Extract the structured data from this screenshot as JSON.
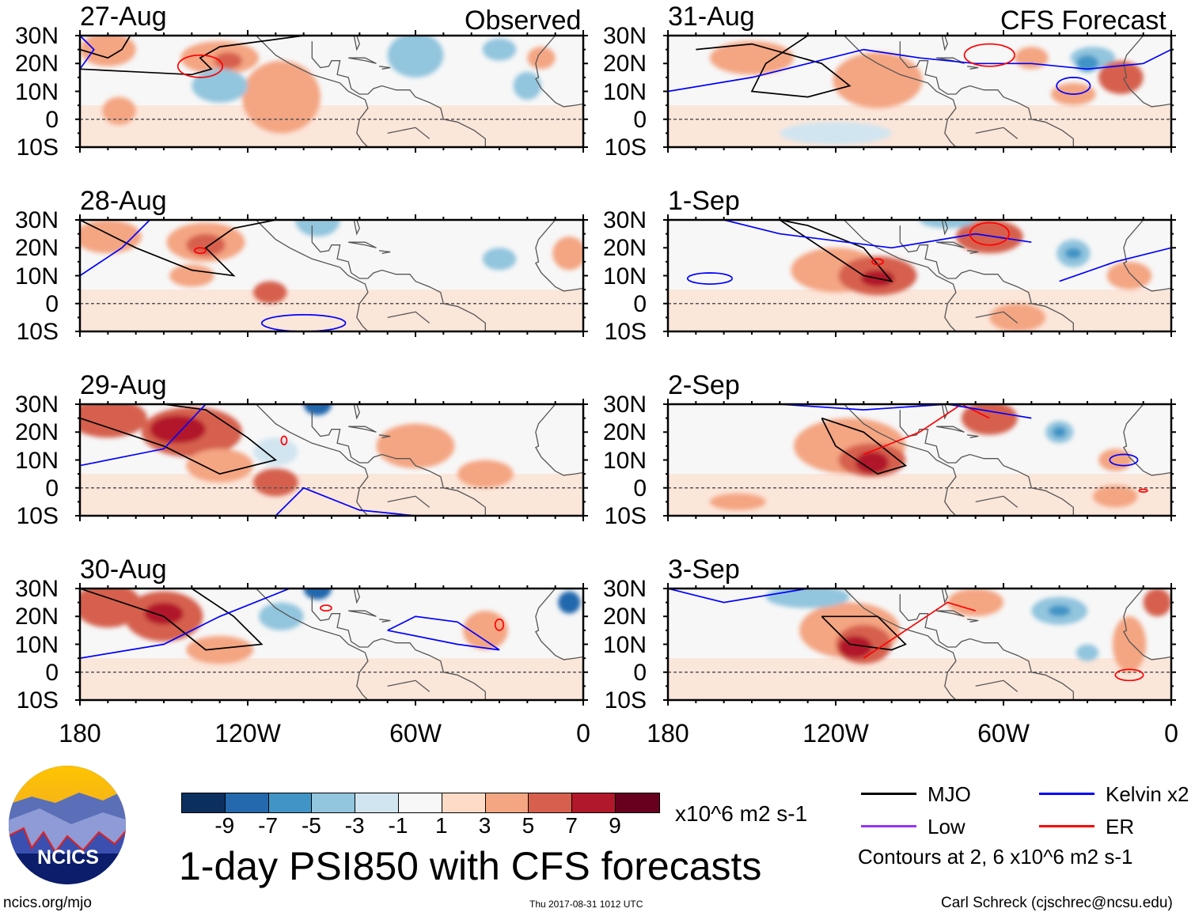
{
  "header": {
    "left_label": "Observed",
    "right_label": "CFS Forecast"
  },
  "chart_data": {
    "type": "heatmap",
    "title": "1-day PSI850 with CFS forecasts",
    "variable": "850-hPa streamfunction anomaly",
    "units": "x10^6 m2 s-1",
    "panels": [
      {
        "date": "27-Aug",
        "source": "Observed"
      },
      {
        "date": "28-Aug",
        "source": "Observed"
      },
      {
        "date": "29-Aug",
        "source": "Observed"
      },
      {
        "date": "30-Aug",
        "source": "Observed"
      },
      {
        "date": "31-Aug",
        "source": "CFS Forecast"
      },
      {
        "date": "1-Sep",
        "source": "CFS Forecast"
      },
      {
        "date": "2-Sep",
        "source": "CFS Forecast"
      },
      {
        "date": "3-Sep",
        "source": "CFS Forecast"
      }
    ],
    "lat_ticks": [
      "30N",
      "20N",
      "10N",
      "0",
      "10S"
    ],
    "lon_ticks": [
      "180",
      "120W",
      "60W",
      "0"
    ],
    "lat_range": [
      -10,
      30
    ],
    "lon_range": [
      -180,
      0
    ],
    "colorbar": {
      "labels": [
        "-9",
        "-7",
        "-5",
        "-3",
        "-1",
        "1",
        "3",
        "5",
        "7",
        "9"
      ],
      "colors": [
        "#0b305f",
        "#2468ad",
        "#4194c6",
        "#92c5de",
        "#d1e5f0",
        "#f7f7f7",
        "#fddbc7",
        "#f4a582",
        "#d6604d",
        "#b2182b",
        "#67001f"
      ]
    },
    "legend": [
      {
        "label": "MJO",
        "color": "#000000"
      },
      {
        "label": "Kelvin x2",
        "color": "#0000ff"
      },
      {
        "label": "Low",
        "color": "#9933ff"
      },
      {
        "label": "ER",
        "color": "#ff0000"
      }
    ],
    "contour_note": "Contours at 2, 6 x10^6 m2 s-1"
  },
  "footer": {
    "logo_text": "NCICS",
    "url": "ncics.org/mjo",
    "timestamp": "Thu 2017-08-31 1012 UTC",
    "author": "Carl Schreck (cjschrec@ncsu.edu)"
  }
}
